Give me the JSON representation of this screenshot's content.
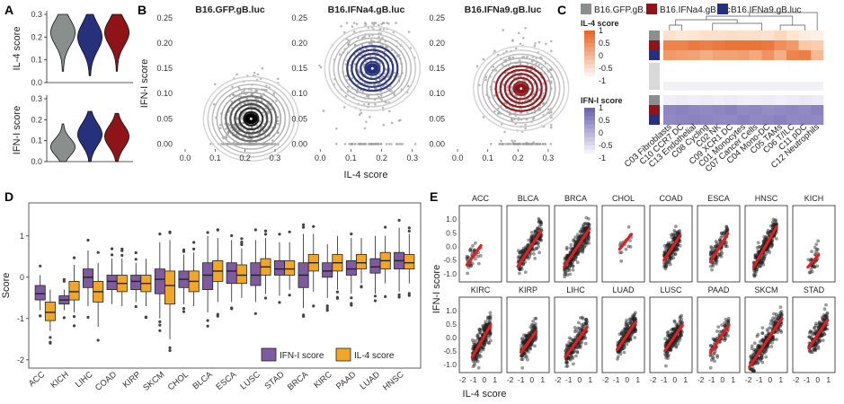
{
  "panel_labels": [
    "A",
    "B",
    "C",
    "D",
    "E"
  ],
  "colors": {
    "gfp": "#8a8f8d",
    "ifna4": "#27307a",
    "ifna9": "#8e1418",
    "ifn_box": "#7e5aa0",
    "il4_box": "#f0a629",
    "line": "#e02020",
    "orange": "#e8692c",
    "purple": "#6f66b0"
  },
  "chart_data": [
    {
      "id": "A",
      "type": "violin",
      "subplots": [
        {
          "ylabel": "IL-4 score",
          "ylim": [
            0,
            0.3
          ],
          "yticks": [
            "0.0",
            "0.1",
            "0.2",
            "0.3"
          ],
          "groups": [
            "B16.GFP.gB.luc",
            "B16.IFNa4.gB.luc",
            "B16.IFNa9.gB.luc"
          ],
          "medians": [
            0.22,
            0.2,
            0.22
          ]
        },
        {
          "ylabel": "IFN-I score",
          "ylim": [
            0,
            0.3
          ],
          "yticks": [
            "0.0",
            "0.1",
            "0.2",
            "0.3"
          ],
          "groups": [
            "B16.GFP.gB.luc",
            "B16.IFNa4.gB.luc",
            "B16.IFNa9.gB.luc"
          ],
          "medians": [
            0.07,
            0.13,
            0.12
          ]
        }
      ]
    },
    {
      "id": "B",
      "type": "scatter_density",
      "xlabel": "IL-4 score",
      "ylabel": "IFN-I score",
      "xlim": [
        -0.03,
        0.33
      ],
      "ylim": [
        -0.01,
        0.25
      ],
      "xticks": [
        "0.0",
        "0.1",
        "0.2",
        "0.3"
      ],
      "yticks": [
        "0.00",
        "0.05",
        "0.10",
        "0.15",
        "0.20",
        "0.25"
      ],
      "subplots": [
        {
          "title": "B16.GFP.gB.luc",
          "center": [
            0.22,
            0.05
          ],
          "spread": [
            0.05,
            0.04
          ]
        },
        {
          "title": "B16.IFNa4.gB.luc",
          "center": [
            0.17,
            0.15
          ],
          "spread": [
            0.05,
            0.045
          ]
        },
        {
          "title": "B16.IFNa9.gB.luc",
          "center": [
            0.21,
            0.11
          ],
          "spread": [
            0.05,
            0.045
          ]
        }
      ]
    },
    {
      "id": "C",
      "type": "heatmap",
      "legend": [
        "B16.GFP.gB.luc",
        "B16.IFNa4.gB.luc",
        "B16.IFNa9.gB.luc"
      ],
      "rows": [
        "B16.GFP.gB.luc",
        "B16.IFNa4.gB.luc",
        "B16.IFNa9.gB.luc"
      ],
      "columns": [
        "C03 Fibroblasts",
        "C10 CCR7 DC",
        "C13 Endothelial",
        "C08 Cycling",
        "C02 NK",
        "C09 XCR1 DC",
        "C01 Monocytes",
        "C07 Cancer Cells",
        "C04 Mono-DC",
        "C05 TAMs",
        "C06 T/ILC",
        "C11 pDC",
        "C12 Neutrophils"
      ],
      "il4": {
        "title": "IL-4 score",
        "ticks": [
          "1",
          "0.5",
          "0",
          "-0.5",
          "-1"
        ],
        "values": [
          [
            -0.35,
            -0.45,
            -0.4,
            -0.3,
            -0.3,
            -0.25,
            -0.3,
            -0.3,
            -0.35,
            -0.1,
            -0.4,
            -0.6,
            -0.7
          ],
          [
            0.75,
            0.75,
            0.85,
            0.8,
            0.85,
            0.9,
            0.9,
            0.9,
            0.85,
            0.65,
            0.55,
            0.1,
            0.05
          ],
          [
            0.55,
            0.5,
            0.45,
            0.35,
            0.45,
            0.45,
            0.5,
            0.4,
            0.6,
            0.35,
            0.75,
            0.8,
            0.25
          ]
        ]
      },
      "ifn": {
        "title": "IFN-I score",
        "ticks": [
          "1",
          "0.5",
          "0",
          "-0.5",
          "-1"
        ],
        "values": [
          [
            -0.95,
            -0.9,
            -0.95,
            -0.9,
            -0.95,
            -0.9,
            -0.95,
            -0.95,
            -0.9,
            -0.95,
            -0.9,
            -0.85,
            -0.9
          ],
          [
            0.55,
            0.6,
            0.55,
            0.5,
            0.55,
            0.6,
            0.5,
            0.55,
            0.45,
            0.5,
            0.55,
            0.5,
            0.6
          ],
          [
            0.5,
            0.55,
            0.6,
            0.55,
            0.5,
            0.5,
            0.6,
            0.5,
            0.55,
            0.6,
            0.5,
            0.55,
            0.5
          ]
        ]
      }
    },
    {
      "id": "D",
      "type": "box",
      "ylabel": "Score",
      "ylim": [
        -2.2,
        1.8
      ],
      "yticks": [
        "1",
        "0",
        "-1",
        "-2"
      ],
      "legend": [
        "IFN-I score",
        "IL-4 score"
      ],
      "categories": [
        "ACC",
        "KICH",
        "LIHC",
        "COAD",
        "KIRP",
        "SKCM",
        "CHOL",
        "BLCA",
        "ESCA",
        "LUSC",
        "STAD",
        "BRCA",
        "KIRC",
        "PAAD",
        "LUAD",
        "HNSC"
      ],
      "series": [
        {
          "name": "IFN-I score",
          "boxes": [
            [
              -0.8,
              -0.55,
              -0.4,
              -0.2,
              0.05
            ],
            [
              -0.8,
              -0.65,
              -0.55,
              -0.45,
              -0.3
            ],
            [
              -0.7,
              -0.25,
              0.0,
              0.2,
              0.65
            ],
            [
              -0.65,
              -0.3,
              -0.1,
              0.05,
              0.45
            ],
            [
              -0.6,
              -0.3,
              -0.1,
              0.05,
              0.35
            ],
            [
              -1.0,
              -0.4,
              -0.05,
              0.2,
              0.85
            ],
            [
              -0.65,
              -0.25,
              -0.05,
              0.15,
              0.55
            ],
            [
              -0.85,
              -0.3,
              0.05,
              0.35,
              1.0
            ],
            [
              -0.6,
              -0.15,
              0.15,
              0.35,
              0.9
            ],
            [
              -0.6,
              -0.2,
              0.05,
              0.35,
              0.9
            ],
            [
              -0.45,
              0.05,
              0.2,
              0.4,
              0.85
            ],
            [
              -0.75,
              -0.25,
              0.05,
              0.35,
              1.05
            ],
            [
              -0.5,
              0.0,
              0.15,
              0.35,
              0.8
            ],
            [
              -0.4,
              0.05,
              0.2,
              0.4,
              0.95
            ],
            [
              -0.4,
              0.1,
              0.25,
              0.45,
              1.0
            ],
            [
              -0.35,
              0.2,
              0.4,
              0.6,
              1.2
            ]
          ]
        },
        {
          "name": "IL-4 score",
          "boxes": [
            [
              -1.3,
              -1.05,
              -0.85,
              -0.6,
              -0.3
            ],
            [
              -0.85,
              -0.55,
              -0.35,
              -0.1,
              0.3
            ],
            [
              -1.2,
              -0.6,
              -0.35,
              -0.1,
              0.35
            ],
            [
              -0.7,
              -0.35,
              -0.15,
              0.05,
              0.45
            ],
            [
              -0.7,
              -0.35,
              -0.15,
              0.05,
              0.45
            ],
            [
              -1.5,
              -0.65,
              -0.2,
              0.15,
              0.9
            ],
            [
              -0.7,
              -0.35,
              -0.1,
              0.15,
              0.6
            ],
            [
              -0.6,
              -0.1,
              0.15,
              0.4,
              0.95
            ],
            [
              -0.5,
              -0.15,
              0.05,
              0.3,
              0.7
            ],
            [
              -0.4,
              0.05,
              0.25,
              0.45,
              0.95
            ],
            [
              -0.3,
              0.05,
              0.2,
              0.4,
              0.85
            ],
            [
              -0.35,
              0.15,
              0.35,
              0.55,
              1.05
            ],
            [
              -0.3,
              0.15,
              0.35,
              0.55,
              1.0
            ],
            [
              -0.15,
              0.2,
              0.35,
              0.55,
              0.95
            ],
            [
              -0.15,
              0.2,
              0.4,
              0.6,
              1.0
            ],
            [
              -0.15,
              0.2,
              0.35,
              0.55,
              1.05
            ]
          ]
        }
      ]
    },
    {
      "id": "E",
      "type": "scatter_facets",
      "xlabel": "IL-4 score",
      "ylabel": "IFN-I score",
      "xlim": [
        -2.3,
        1.6
      ],
      "ylim": [
        -1.3,
        1.5
      ],
      "xticks": [
        "-2",
        "-1",
        "0",
        "1"
      ],
      "yticks": [
        "1.0",
        "0.5",
        "0.0",
        "-0.5",
        "-1.0"
      ],
      "panels": [
        {
          "name": "ACC",
          "n": 40,
          "xr": [
            -1.6,
            -0.3
          ],
          "slope": 0.55,
          "icpt": 0.2
        },
        {
          "name": "BLCA",
          "n": 220,
          "xr": [
            -1.3,
            0.9
          ],
          "slope": 0.6,
          "icpt": 0.05
        },
        {
          "name": "BRCA",
          "n": 320,
          "xr": [
            -1.4,
            0.9
          ],
          "slope": 0.6,
          "icpt": 0.1
        },
        {
          "name": "CHOL",
          "n": 18,
          "xr": [
            -0.7,
            0.4
          ],
          "slope": 0.5,
          "icpt": 0.25
        },
        {
          "name": "COAD",
          "n": 200,
          "xr": [
            -1.0,
            0.5
          ],
          "slope": 0.6,
          "icpt": 0.1
        },
        {
          "name": "ESCA",
          "n": 120,
          "xr": [
            -1.1,
            0.5
          ],
          "slope": 0.65,
          "icpt": 0.15
        },
        {
          "name": "HNSC",
          "n": 280,
          "xr": [
            -1.5,
            0.6
          ],
          "slope": 0.7,
          "icpt": 0.3
        },
        {
          "name": "KICH",
          "n": 40,
          "xr": [
            -0.9,
            0.1
          ],
          "slope": 0.45,
          "icpt": -0.35
        },
        {
          "name": "KIRC",
          "n": 250,
          "xr": [
            -1.1,
            0.6
          ],
          "slope": 0.7,
          "icpt": 0.05
        },
        {
          "name": "KIRP",
          "n": 180,
          "xr": [
            -1.0,
            0.4
          ],
          "slope": 0.55,
          "icpt": 0.0
        },
        {
          "name": "LIHC",
          "n": 200,
          "xr": [
            -1.3,
            0.7
          ],
          "slope": 0.55,
          "icpt": 0.0
        },
        {
          "name": "LUAD",
          "n": 220,
          "xr": [
            -0.9,
            0.8
          ],
          "slope": 0.6,
          "icpt": 0.1
        },
        {
          "name": "LUSC",
          "n": 220,
          "xr": [
            -0.9,
            0.7
          ],
          "slope": 0.6,
          "icpt": 0.05
        },
        {
          "name": "PAAD",
          "n": 90,
          "xr": [
            -1.1,
            0.6
          ],
          "slope": 0.6,
          "icpt": 0.1
        },
        {
          "name": "SKCM",
          "n": 300,
          "xr": [
            -1.9,
            1.1
          ],
          "slope": 0.6,
          "icpt": 0.05
        },
        {
          "name": "STAD",
          "n": 200,
          "xr": [
            -0.8,
            0.9
          ],
          "slope": 0.6,
          "icpt": 0.1
        }
      ]
    }
  ]
}
